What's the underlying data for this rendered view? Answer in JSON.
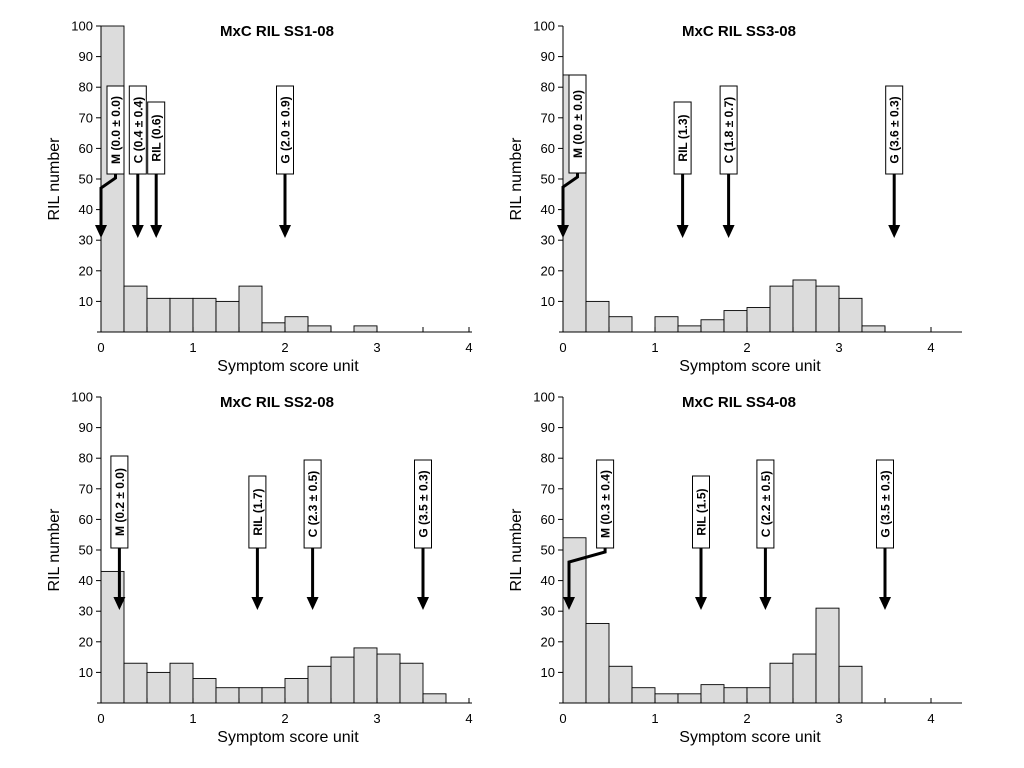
{
  "chart_data": [
    {
      "type": "bar",
      "title": "MxC RIL SS1-08",
      "xlabel": "Symptom score unit",
      "ylabel": "RIL number",
      "xlim": [
        0,
        4.25
      ],
      "ylim": [
        0,
        100
      ],
      "xticks": [
        "0",
        "1",
        "2",
        "3",
        "4"
      ],
      "yticks": [
        "10",
        "20",
        "30",
        "40",
        "50",
        "60",
        "70",
        "80",
        "90",
        "100"
      ],
      "bin_width": 0.25,
      "bins": [
        {
          "x": 0.0,
          "value": 100
        },
        {
          "x": 0.25,
          "value": 15
        },
        {
          "x": 0.5,
          "value": 11
        },
        {
          "x": 0.75,
          "value": 11
        },
        {
          "x": 1.0,
          "value": 11
        },
        {
          "x": 1.25,
          "value": 10
        },
        {
          "x": 1.5,
          "value": 15
        },
        {
          "x": 1.75,
          "value": 3
        },
        {
          "x": 2.0,
          "value": 5
        },
        {
          "x": 2.25,
          "value": 2
        },
        {
          "x": 2.75,
          "value": 2
        }
      ],
      "annotations": [
        {
          "label": "M (0.0 ± 0.0)",
          "x": 0.0
        },
        {
          "label": "C (0.4 ± 0.4)",
          "x": 0.4
        },
        {
          "label": "RIL (0.6)",
          "x": 0.6
        },
        {
          "label": "G (2.0 ± 0.9)",
          "x": 2.0
        }
      ]
    },
    {
      "type": "bar",
      "title": "MxC RIL SS3-08",
      "xlabel": "Symptom score unit",
      "ylabel": "RIL number",
      "xlim": [
        0,
        4.25
      ],
      "ylim": [
        0,
        100
      ],
      "xticks": [
        "0",
        "1",
        "2",
        "3",
        "4"
      ],
      "yticks": [
        "10",
        "20",
        "30",
        "40",
        "50",
        "60",
        "70",
        "80",
        "90",
        "100"
      ],
      "bin_width": 0.25,
      "bins": [
        {
          "x": 0.0,
          "value": 84
        },
        {
          "x": 0.25,
          "value": 10
        },
        {
          "x": 0.5,
          "value": 5
        },
        {
          "x": 1.0,
          "value": 5
        },
        {
          "x": 1.25,
          "value": 2
        },
        {
          "x": 1.5,
          "value": 4
        },
        {
          "x": 1.75,
          "value": 7
        },
        {
          "x": 2.0,
          "value": 8
        },
        {
          "x": 2.25,
          "value": 15
        },
        {
          "x": 2.5,
          "value": 17
        },
        {
          "x": 2.75,
          "value": 15
        },
        {
          "x": 3.0,
          "value": 11
        },
        {
          "x": 3.25,
          "value": 2
        }
      ],
      "annotations": [
        {
          "label": "M (0.0 ± 0.0)",
          "x": 0.0
        },
        {
          "label": "RIL (1.3)",
          "x": 1.3
        },
        {
          "label": "C (1.8 ± 0.7)",
          "x": 1.8
        },
        {
          "label": "G (3.6 ± 0.3)",
          "x": 3.6
        }
      ]
    },
    {
      "type": "bar",
      "title": "MxC RIL SS2-08",
      "xlabel": "Symptom score unit",
      "ylabel": "RIL number",
      "xlim": [
        0,
        4.25
      ],
      "ylim": [
        0,
        100
      ],
      "xticks": [
        "0",
        "1",
        "2",
        "3",
        "4"
      ],
      "yticks": [
        "10",
        "20",
        "30",
        "40",
        "50",
        "60",
        "70",
        "80",
        "90",
        "100"
      ],
      "bin_width": 0.25,
      "bins": [
        {
          "x": 0.0,
          "value": 43
        },
        {
          "x": 0.25,
          "value": 13
        },
        {
          "x": 0.5,
          "value": 10
        },
        {
          "x": 0.75,
          "value": 13
        },
        {
          "x": 1.0,
          "value": 8
        },
        {
          "x": 1.25,
          "value": 5
        },
        {
          "x": 1.5,
          "value": 5
        },
        {
          "x": 1.75,
          "value": 5
        },
        {
          "x": 2.0,
          "value": 8
        },
        {
          "x": 2.25,
          "value": 12
        },
        {
          "x": 2.5,
          "value": 15
        },
        {
          "x": 2.75,
          "value": 18
        },
        {
          "x": 3.0,
          "value": 16
        },
        {
          "x": 3.25,
          "value": 13
        },
        {
          "x": 3.5,
          "value": 3
        }
      ],
      "annotations": [
        {
          "label": "M (0.2 ± 0.0)",
          "x": 0.2
        },
        {
          "label": "RIL (1.7)",
          "x": 1.7
        },
        {
          "label": "C (2.3 ± 0.5)",
          "x": 2.3
        },
        {
          "label": "G (3.5 ± 0.3)",
          "x": 3.5
        }
      ]
    },
    {
      "type": "bar",
      "title": "MxC RIL SS4-08",
      "xlabel": "Symptom score unit",
      "ylabel": "RIL number",
      "xlim": [
        0,
        4.25
      ],
      "ylim": [
        0,
        100
      ],
      "xticks": [
        "0",
        "1",
        "2",
        "3",
        "4"
      ],
      "yticks": [
        "10",
        "20",
        "30",
        "40",
        "50",
        "60",
        "70",
        "80",
        "90",
        "100"
      ],
      "bin_width": 0.25,
      "bins": [
        {
          "x": 0.0,
          "value": 54
        },
        {
          "x": 0.25,
          "value": 26
        },
        {
          "x": 0.5,
          "value": 12
        },
        {
          "x": 0.75,
          "value": 5
        },
        {
          "x": 1.0,
          "value": 3
        },
        {
          "x": 1.25,
          "value": 3
        },
        {
          "x": 1.5,
          "value": 6
        },
        {
          "x": 1.75,
          "value": 5
        },
        {
          "x": 2.0,
          "value": 5
        },
        {
          "x": 2.25,
          "value": 13
        },
        {
          "x": 2.5,
          "value": 16
        },
        {
          "x": 2.75,
          "value": 31
        },
        {
          "x": 3.0,
          "value": 12
        }
      ],
      "annotations": [
        {
          "label": "M (0.3 ± 0.4)",
          "x": 0.3
        },
        {
          "label": "RIL (1.5)",
          "x": 1.5
        },
        {
          "label": "C (2.2 ± 0.5)",
          "x": 2.2
        },
        {
          "label": "G (3.5 ± 0.3)",
          "x": 3.5
        }
      ]
    }
  ]
}
